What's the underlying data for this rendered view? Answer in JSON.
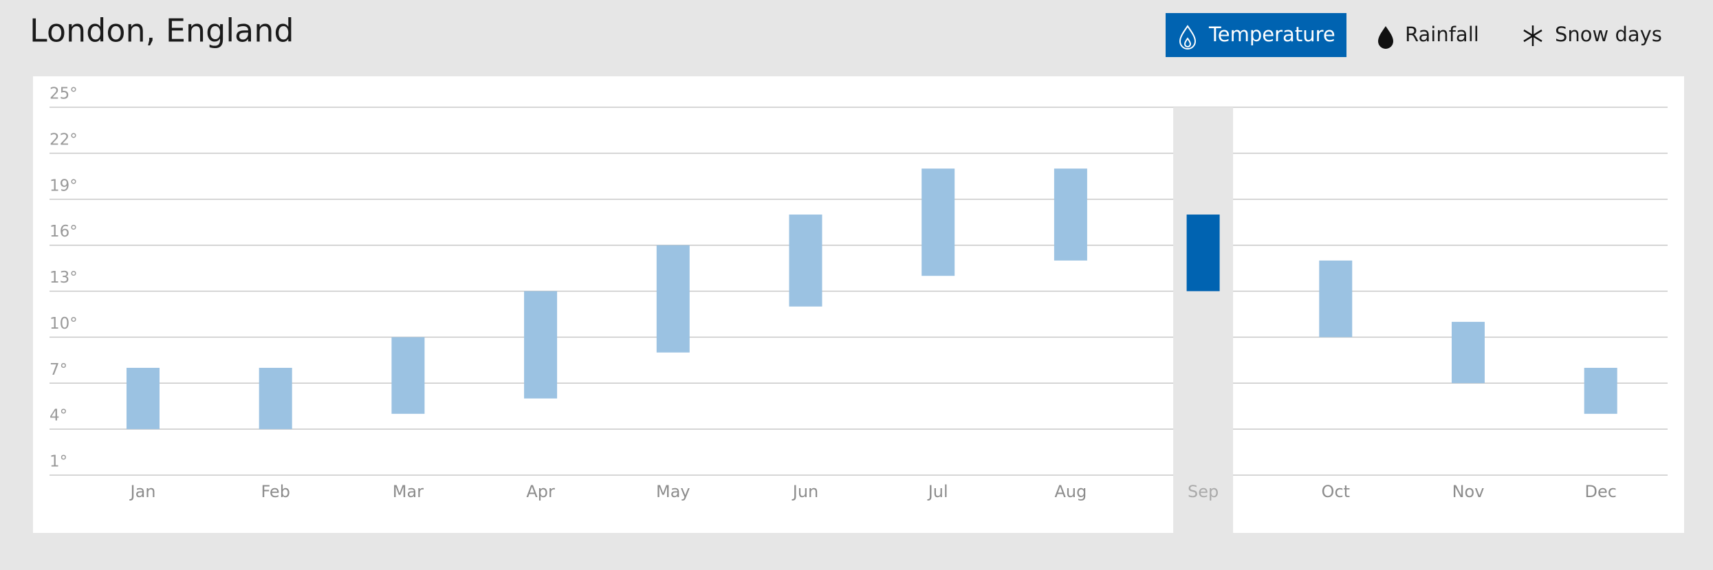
{
  "title": "London, England",
  "tabs": [
    {
      "label": "Temperature",
      "selected": true
    },
    {
      "label": "Rainfall",
      "selected": false
    },
    {
      "label": "Snow days",
      "selected": false
    }
  ],
  "chart_data": {
    "type": "range-bar",
    "categories": [
      "Jan",
      "Feb",
      "Mar",
      "Apr",
      "May",
      "Jun",
      "Jul",
      "Aug",
      "Sep",
      "Oct",
      "Nov",
      "Dec"
    ],
    "low": [
      4,
      4,
      5,
      6,
      9,
      12,
      14,
      15,
      13,
      10,
      7,
      5
    ],
    "high": [
      8,
      8,
      10,
      13,
      16,
      18,
      21,
      21,
      18,
      15,
      11,
      8
    ],
    "color": "#9bc2e2",
    "selected": 8,
    "selected_color": "#0063b1",
    "ylim": [
      1,
      25
    ],
    "yticks": [
      {
        "value": 25,
        "label": "25°"
      },
      {
        "value": 22,
        "label": "22°"
      },
      {
        "value": 19,
        "label": "19°"
      },
      {
        "value": 16,
        "label": "16°"
      },
      {
        "value": 13,
        "label": "13°"
      },
      {
        "value": 10,
        "label": "10°"
      },
      {
        "value": 7,
        "label": "7°"
      },
      {
        "value": 4,
        "label": "4°"
      },
      {
        "value": 1,
        "label": "1°"
      }
    ],
    "grid": true
  }
}
